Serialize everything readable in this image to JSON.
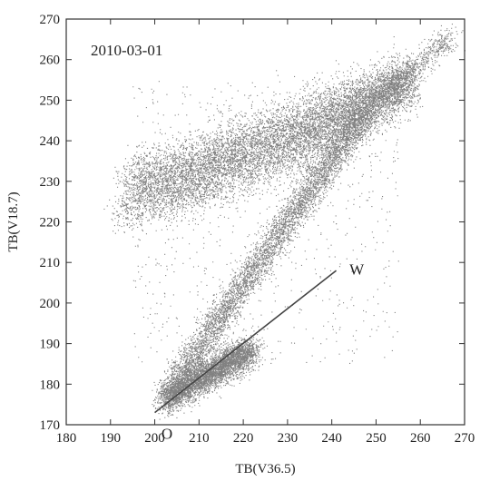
{
  "chart_data": {
    "type": "scatter",
    "title": "",
    "xlabel": "TB(V36.5)",
    "ylabel": "TB(V18.7)",
    "xlim": [
      180,
      270
    ],
    "ylim": [
      170,
      270
    ],
    "xticks": [
      180,
      190,
      200,
      210,
      220,
      230,
      240,
      250,
      260,
      270
    ],
    "yticks": [
      170,
      180,
      190,
      200,
      210,
      220,
      230,
      240,
      250,
      260,
      270
    ],
    "grid": false,
    "annotations": [
      {
        "id": "date",
        "text": "2010-03-01"
      },
      {
        "id": "label_w",
        "text": "W"
      },
      {
        "id": "label_o",
        "text": "O"
      }
    ],
    "reference_line": {
      "name": "W-O line",
      "x": [
        200,
        241
      ],
      "y": [
        173,
        208
      ]
    },
    "clusters": [
      {
        "name": "upper-band",
        "x": [
          192,
          258
        ],
        "y": [
          228,
          257
        ],
        "point_count": 9000
      },
      {
        "name": "diagonal-branch",
        "x": [
          203,
          248
        ],
        "y": [
          177,
          249
        ],
        "point_count": 5000
      },
      {
        "name": "low-cluster",
        "x": [
          202,
          222
        ],
        "y": [
          176,
          190
        ],
        "point_count": 4500
      }
    ],
    "color": "#1a1a1a"
  }
}
